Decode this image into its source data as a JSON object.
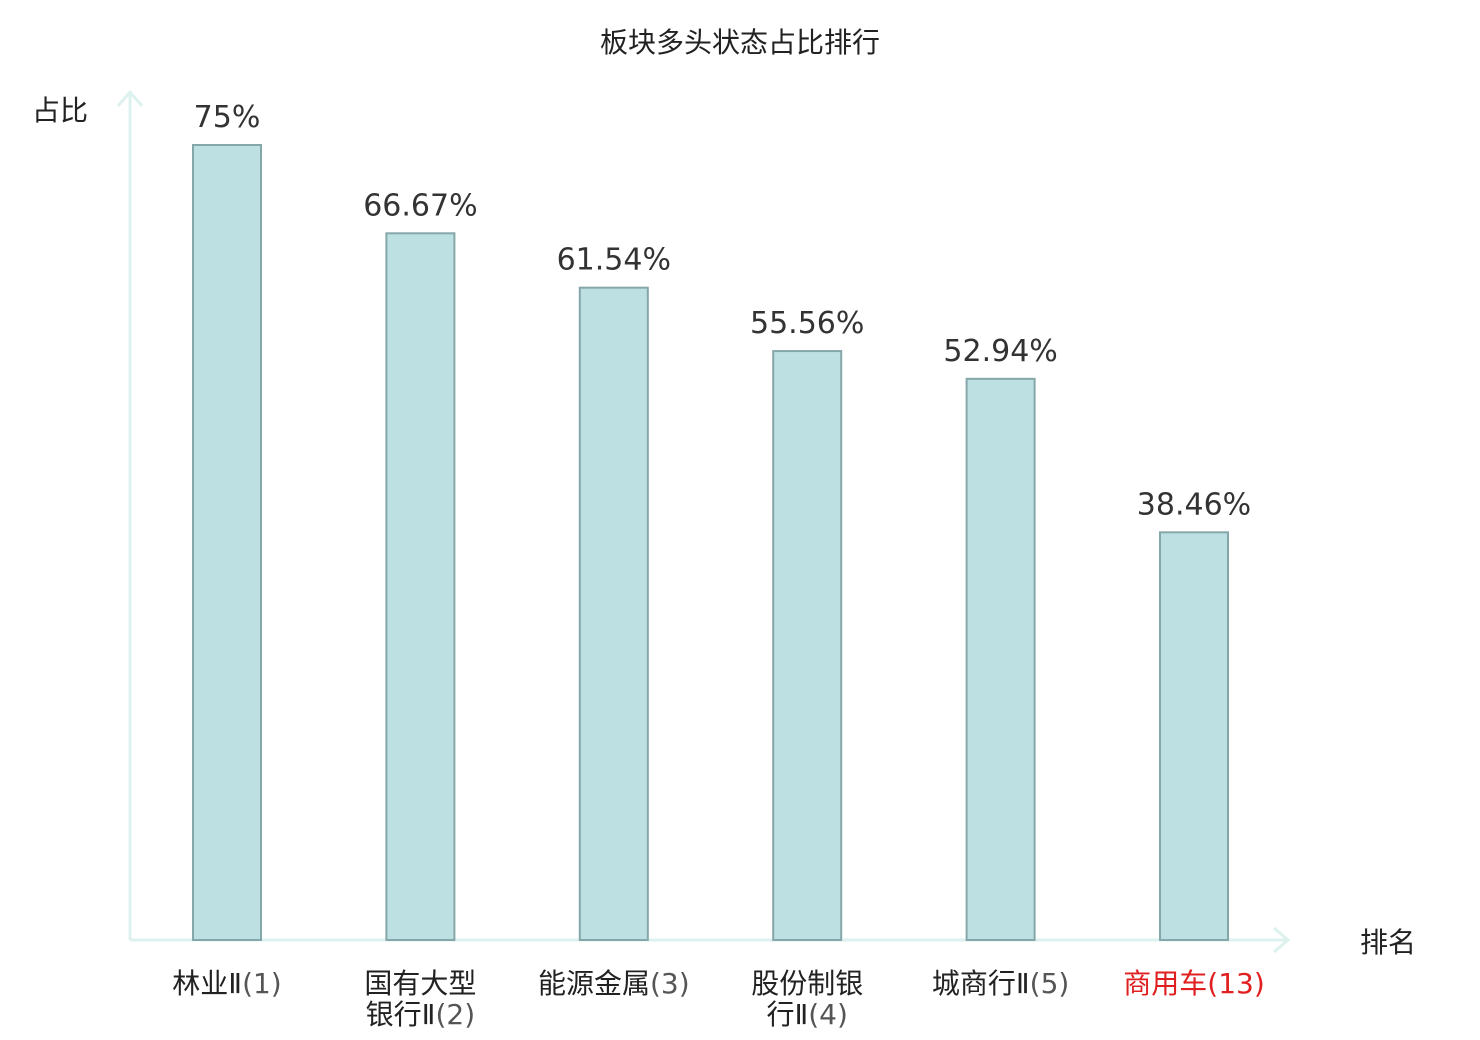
{
  "chart_data": {
    "type": "bar",
    "title": "板块多头状态占比排行",
    "ylabel": "占比",
    "xlabel": "排名",
    "ylim": [
      0,
      80
    ],
    "categories": [
      {
        "name_lines": [
          "林业Ⅱ"
        ],
        "rank": "(1)",
        "highlight": false
      },
      {
        "name_lines": [
          "国有大型",
          "银行Ⅱ"
        ],
        "rank": "(2)",
        "highlight": false
      },
      {
        "name_lines": [
          "能源金属"
        ],
        "rank": "(3)",
        "highlight": false
      },
      {
        "name_lines": [
          "股份制银",
          "行Ⅱ"
        ],
        "rank": "(4)",
        "highlight": false
      },
      {
        "name_lines": [
          "城商行Ⅱ"
        ],
        "rank": "(5)",
        "highlight": false
      },
      {
        "name_lines": [
          "商用车"
        ],
        "rank": "(13)",
        "highlight": true
      }
    ],
    "values": [
      75,
      66.67,
      61.54,
      55.56,
      52.94,
      38.46
    ],
    "value_labels": [
      "75%",
      "66.67%",
      "61.54%",
      "55.56%",
      "52.94%",
      "38.46%"
    ],
    "grid": false,
    "colors": {
      "bar_fill": "#bde1e3",
      "bar_stroke": "#86a7a9",
      "axis": "#ddf2ef",
      "highlight_text": "#e02020",
      "normal_text": "#222222",
      "rank_text": "#555555"
    }
  }
}
